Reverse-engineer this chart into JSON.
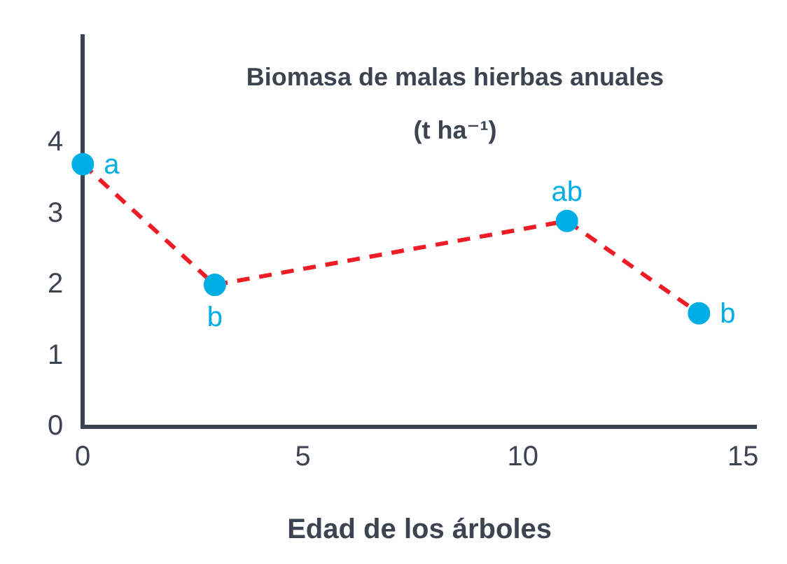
{
  "chart_data": {
    "type": "line",
    "ylabel": "Biomasa de malas hierbas anuales (t ha⁻¹)",
    "xlabel": "Edad de los árboles",
    "x": [
      0,
      3,
      11,
      14
    ],
    "series": [
      {
        "color": "#ee1c25",
        "marker": "none",
        "values": [
          3.7,
          2.0,
          2.9,
          1.6
        ]
      },
      {
        "type": "scatter",
        "color": "#00aee6",
        "values": [
          3.7,
          2.0,
          2.9,
          1.6
        ],
        "value_labels": [
          "a",
          "b",
          "ab",
          "b"
        ]
      }
    ],
    "line_style": "dashed",
    "marker": "circle",
    "xlim": [
      0,
      15.3
    ],
    "xticks": [
      0,
      5,
      10,
      15
    ],
    "ylim": [
      0,
      5.5
    ],
    "yticks": [
      0,
      1,
      2,
      3,
      4
    ],
    "grid": false,
    "legend": false
  }
}
